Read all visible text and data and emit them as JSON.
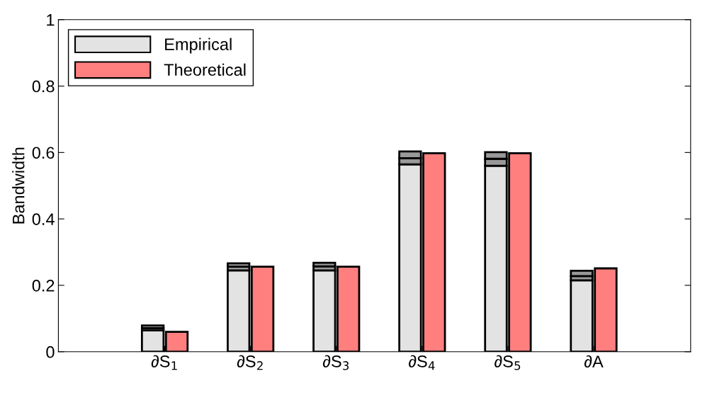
{
  "chart_data": {
    "type": "bar",
    "ylabel": "Bandwidth",
    "categories": [
      "∂S$_{1}$",
      "∂S$_{2}$",
      "∂S$_{3}$",
      "∂S$_{4}$",
      "∂S$_{5}$",
      "∂A"
    ],
    "series": [
      {
        "name": "Empirical",
        "color": "#e3e3e3",
        "base": [
          0,
          0,
          0,
          0,
          0,
          0
        ],
        "values": [
          0.064,
          0.245,
          0.245,
          0.564,
          0.56,
          0.215
        ]
      },
      {
        "color": "#999999",
        "base": [
          0.064,
          0.245,
          0.245,
          0.564,
          0.56,
          0.215
        ],
        "values": [
          0.007,
          0.011,
          0.012,
          0.019,
          0.021,
          0.013
        ]
      },
      {
        "color": "#999999",
        "base": [
          0.071,
          0.256,
          0.257,
          0.583,
          0.581,
          0.228
        ],
        "values": [
          0.008,
          0.01,
          0.011,
          0.02,
          0.02,
          0.016
        ]
      },
      {
        "name": "Theoretical",
        "color": "#ff7f7f",
        "base": [
          0,
          0,
          0,
          0,
          0,
          0
        ],
        "values": [
          0.06,
          0.256,
          0.256,
          0.598,
          0.598,
          0.251
        ]
      }
    ],
    "ylim": [
      0,
      1
    ],
    "yticks": [
      0,
      {
        "value": 0.2,
        "label": "0.2"
      },
      {
        "value": 0.4,
        "label": "0.4"
      },
      {
        "value": 0.6,
        "label": "0.6"
      },
      {
        "value": 0.8,
        "label": "0.8"
      },
      1
    ],
    "legend": "top left",
    "grid": false
  }
}
